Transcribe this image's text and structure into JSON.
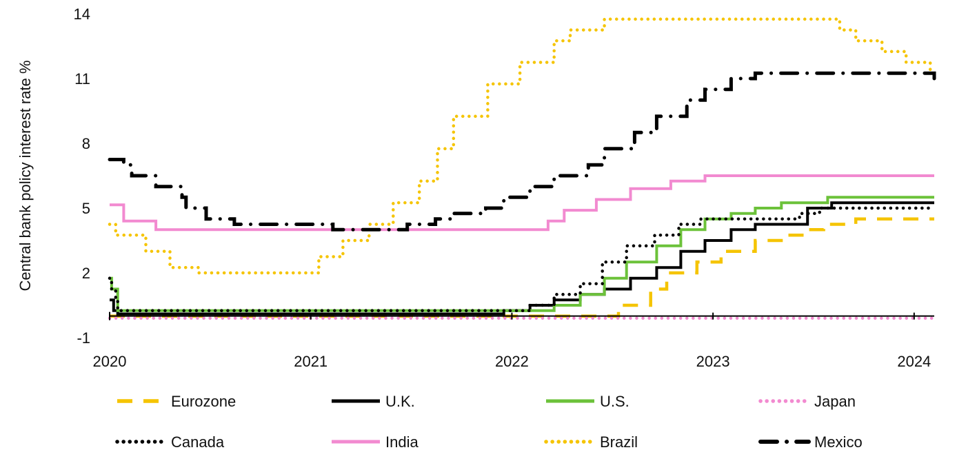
{
  "chart_data": {
    "type": "line",
    "title": "",
    "xlabel": "",
    "ylabel": "Central bank policy interest  rate %",
    "x_ticks": [
      "2020",
      "2021",
      "2022",
      "2023",
      "2024"
    ],
    "y_ticks": [
      "14",
      "11",
      "8",
      "5",
      "2",
      "-1"
    ],
    "xlim": [
      2020.0,
      2024.1
    ],
    "ylim": [
      -1,
      14
    ],
    "grid": false,
    "legend_position": "bottom",
    "series": [
      {
        "name": "Eurozone",
        "color": "#F5C400",
        "style": "dashed",
        "points": [
          [
            2020.0,
            0
          ],
          [
            2022.53,
            0
          ],
          [
            2022.53,
            0.5
          ],
          [
            2022.69,
            0.5
          ],
          [
            2022.69,
            1.25
          ],
          [
            2022.77,
            1.25
          ],
          [
            2022.77,
            2.0
          ],
          [
            2022.92,
            2.0
          ],
          [
            2022.92,
            2.5
          ],
          [
            2023.04,
            2.5
          ],
          [
            2023.04,
            3.0
          ],
          [
            2023.21,
            3.0
          ],
          [
            2023.21,
            3.5
          ],
          [
            2023.37,
            3.5
          ],
          [
            2023.37,
            3.75
          ],
          [
            2023.46,
            3.75
          ],
          [
            2023.46,
            4.0
          ],
          [
            2023.55,
            4.0
          ],
          [
            2023.55,
            4.25
          ],
          [
            2023.71,
            4.25
          ],
          [
            2023.71,
            4.5
          ],
          [
            2024.1,
            4.5
          ]
        ]
      },
      {
        "name": "U.K.",
        "color": "#000000",
        "style": "solid",
        "points": [
          [
            2020.0,
            0.75
          ],
          [
            2020.02,
            0.75
          ],
          [
            2020.02,
            0.25
          ],
          [
            2020.04,
            0.25
          ],
          [
            2020.04,
            0.1
          ],
          [
            2021.96,
            0.1
          ],
          [
            2021.96,
            0.25
          ],
          [
            2022.09,
            0.25
          ],
          [
            2022.09,
            0.5
          ],
          [
            2022.21,
            0.5
          ],
          [
            2022.21,
            0.75
          ],
          [
            2022.34,
            0.75
          ],
          [
            2022.34,
            1.0
          ],
          [
            2022.46,
            1.0
          ],
          [
            2022.46,
            1.25
          ],
          [
            2022.59,
            1.25
          ],
          [
            2022.59,
            1.75
          ],
          [
            2022.72,
            1.75
          ],
          [
            2022.72,
            2.25
          ],
          [
            2022.84,
            2.25
          ],
          [
            2022.84,
            3.0
          ],
          [
            2022.96,
            3.0
          ],
          [
            2022.96,
            3.5
          ],
          [
            2023.09,
            3.5
          ],
          [
            2023.09,
            4.0
          ],
          [
            2023.21,
            4.0
          ],
          [
            2023.21,
            4.25
          ],
          [
            2023.47,
            4.25
          ],
          [
            2023.47,
            5.0
          ],
          [
            2023.59,
            5.0
          ],
          [
            2023.59,
            5.25
          ],
          [
            2024.1,
            5.25
          ]
        ]
      },
      {
        "name": "U.S.",
        "color": "#6CC23A",
        "style": "solid",
        "points": [
          [
            2020.0,
            1.75
          ],
          [
            2020.01,
            1.75
          ],
          [
            2020.01,
            1.25
          ],
          [
            2020.04,
            1.25
          ],
          [
            2020.04,
            0.25
          ],
          [
            2022.21,
            0.25
          ],
          [
            2022.21,
            0.5
          ],
          [
            2022.34,
            0.5
          ],
          [
            2022.34,
            1.0
          ],
          [
            2022.46,
            1.0
          ],
          [
            2022.46,
            1.75
          ],
          [
            2022.57,
            1.75
          ],
          [
            2022.57,
            2.5
          ],
          [
            2022.72,
            2.5
          ],
          [
            2022.72,
            3.25
          ],
          [
            2022.84,
            3.25
          ],
          [
            2022.84,
            4.0
          ],
          [
            2022.96,
            4.0
          ],
          [
            2022.96,
            4.5
          ],
          [
            2023.09,
            4.5
          ],
          [
            2023.09,
            4.75
          ],
          [
            2023.21,
            4.75
          ],
          [
            2023.21,
            5.0
          ],
          [
            2023.34,
            5.0
          ],
          [
            2023.34,
            5.25
          ],
          [
            2023.57,
            5.25
          ],
          [
            2023.57,
            5.5
          ],
          [
            2024.1,
            5.5
          ]
        ]
      },
      {
        "name": "Japan",
        "color": "#F28AD0",
        "style": "dotted",
        "points": [
          [
            2020.0,
            -0.1
          ],
          [
            2024.1,
            -0.1
          ]
        ]
      },
      {
        "name": "Canada",
        "color": "#000000",
        "style": "dotted",
        "points": [
          [
            2020.0,
            1.75
          ],
          [
            2020.01,
            1.75
          ],
          [
            2020.01,
            1.25
          ],
          [
            2020.03,
            1.25
          ],
          [
            2020.03,
            0.75
          ],
          [
            2020.04,
            0.75
          ],
          [
            2020.04,
            0.25
          ],
          [
            2022.09,
            0.25
          ],
          [
            2022.09,
            0.5
          ],
          [
            2022.21,
            0.5
          ],
          [
            2022.21,
            1.0
          ],
          [
            2022.34,
            1.0
          ],
          [
            2022.34,
            1.5
          ],
          [
            2022.45,
            1.5
          ],
          [
            2022.45,
            2.5
          ],
          [
            2022.57,
            2.5
          ],
          [
            2022.57,
            3.25
          ],
          [
            2022.71,
            3.25
          ],
          [
            2022.71,
            3.75
          ],
          [
            2022.83,
            3.75
          ],
          [
            2022.83,
            4.25
          ],
          [
            2022.94,
            4.25
          ],
          [
            2022.94,
            4.5
          ],
          [
            2023.43,
            4.5
          ],
          [
            2023.43,
            4.75
          ],
          [
            2023.53,
            4.75
          ],
          [
            2023.53,
            5.0
          ],
          [
            2024.1,
            5.0
          ]
        ]
      },
      {
        "name": "India",
        "color": "#F28AD0",
        "style": "solid",
        "points": [
          [
            2020.0,
            5.15
          ],
          [
            2020.07,
            5.15
          ],
          [
            2020.07,
            4.4
          ],
          [
            2020.23,
            4.4
          ],
          [
            2020.23,
            4.0
          ],
          [
            2022.18,
            4.0
          ],
          [
            2022.18,
            4.4
          ],
          [
            2022.26,
            4.4
          ],
          [
            2022.26,
            4.9
          ],
          [
            2022.42,
            4.9
          ],
          [
            2022.42,
            5.4
          ],
          [
            2022.59,
            5.4
          ],
          [
            2022.59,
            5.9
          ],
          [
            2022.79,
            5.9
          ],
          [
            2022.79,
            6.25
          ],
          [
            2022.96,
            6.25
          ],
          [
            2022.96,
            6.5
          ],
          [
            2024.1,
            6.5
          ]
        ]
      },
      {
        "name": "Brazil",
        "color": "#F5C400",
        "style": "dotted",
        "points": [
          [
            2020.0,
            4.25
          ],
          [
            2020.03,
            4.25
          ],
          [
            2020.03,
            3.75
          ],
          [
            2020.18,
            3.75
          ],
          [
            2020.18,
            3.0
          ],
          [
            2020.3,
            3.0
          ],
          [
            2020.3,
            2.25
          ],
          [
            2020.44,
            2.25
          ],
          [
            2020.44,
            2.0
          ],
          [
            2021.04,
            2.0
          ],
          [
            2021.04,
            2.75
          ],
          [
            2021.16,
            2.75
          ],
          [
            2021.16,
            3.5
          ],
          [
            2021.29,
            3.5
          ],
          [
            2021.29,
            4.25
          ],
          [
            2021.41,
            4.25
          ],
          [
            2021.41,
            5.25
          ],
          [
            2021.54,
            5.25
          ],
          [
            2021.54,
            6.25
          ],
          [
            2021.63,
            6.25
          ],
          [
            2021.63,
            7.75
          ],
          [
            2021.71,
            7.75
          ],
          [
            2021.71,
            9.25
          ],
          [
            2021.88,
            9.25
          ],
          [
            2021.88,
            10.75
          ],
          [
            2022.04,
            10.75
          ],
          [
            2022.04,
            11.75
          ],
          [
            2022.21,
            11.75
          ],
          [
            2022.21,
            12.75
          ],
          [
            2022.29,
            12.75
          ],
          [
            2022.29,
            13.25
          ],
          [
            2022.46,
            13.25
          ],
          [
            2022.46,
            13.75
          ],
          [
            2023.63,
            13.75
          ],
          [
            2023.63,
            13.25
          ],
          [
            2023.71,
            13.25
          ],
          [
            2023.71,
            12.75
          ],
          [
            2023.84,
            12.75
          ],
          [
            2023.84,
            12.25
          ],
          [
            2023.96,
            12.25
          ],
          [
            2023.96,
            11.75
          ],
          [
            2024.08,
            11.75
          ],
          [
            2024.08,
            11.25
          ],
          [
            2024.1,
            11.25
          ]
        ]
      },
      {
        "name": "Mexico",
        "color": "#000000",
        "style": "dashdot",
        "points": [
          [
            2020.0,
            7.25
          ],
          [
            2020.07,
            7.25
          ],
          [
            2020.07,
            7.0
          ],
          [
            2020.11,
            7.0
          ],
          [
            2020.11,
            6.5
          ],
          [
            2020.23,
            6.5
          ],
          [
            2020.23,
            6.0
          ],
          [
            2020.36,
            6.0
          ],
          [
            2020.36,
            5.5
          ],
          [
            2020.38,
            5.5
          ],
          [
            2020.38,
            5.0
          ],
          [
            2020.48,
            5.0
          ],
          [
            2020.48,
            4.5
          ],
          [
            2020.62,
            4.5
          ],
          [
            2020.62,
            4.25
          ],
          [
            2020.92,
            4.25
          ],
          [
            2020.92,
            4.25
          ],
          [
            2021.11,
            4.25
          ],
          [
            2021.11,
            4.0
          ],
          [
            2021.48,
            4.0
          ],
          [
            2021.48,
            4.25
          ],
          [
            2021.62,
            4.25
          ],
          [
            2021.62,
            4.5
          ],
          [
            2021.71,
            4.5
          ],
          [
            2021.71,
            4.75
          ],
          [
            2021.87,
            4.75
          ],
          [
            2021.87,
            5.0
          ],
          [
            2021.96,
            5.0
          ],
          [
            2021.96,
            5.5
          ],
          [
            2022.09,
            5.5
          ],
          [
            2022.09,
            6.0
          ],
          [
            2022.21,
            6.0
          ],
          [
            2022.21,
            6.5
          ],
          [
            2022.38,
            6.5
          ],
          [
            2022.38,
            7.0
          ],
          [
            2022.46,
            7.0
          ],
          [
            2022.46,
            7.75
          ],
          [
            2022.61,
            7.75
          ],
          [
            2022.61,
            8.5
          ],
          [
            2022.72,
            8.5
          ],
          [
            2022.72,
            9.25
          ],
          [
            2022.87,
            9.25
          ],
          [
            2022.87,
            10.0
          ],
          [
            2022.96,
            10.0
          ],
          [
            2022.96,
            10.5
          ],
          [
            2023.09,
            10.5
          ],
          [
            2023.09,
            11.0
          ],
          [
            2023.21,
            11.0
          ],
          [
            2023.21,
            11.25
          ],
          [
            2024.1,
            11.25
          ],
          [
            2024.1,
            11.0
          ]
        ]
      }
    ]
  }
}
